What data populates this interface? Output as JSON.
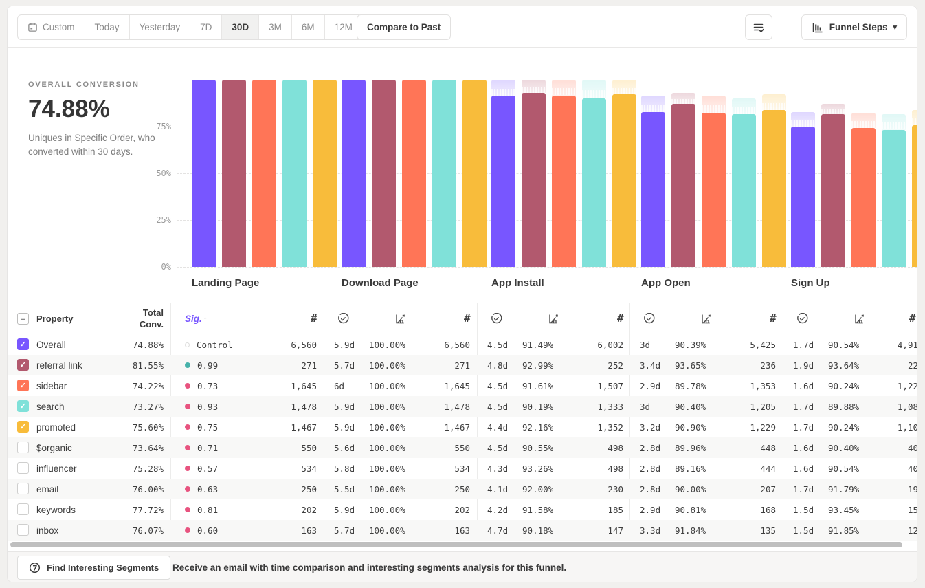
{
  "toolbar": {
    "date_ranges": [
      "Custom",
      "Today",
      "Yesterday",
      "7D",
      "30D",
      "3M",
      "6M",
      "12M"
    ],
    "selected_range": "30D",
    "compare_label": "Compare to Past",
    "view_label": "Funnel Steps"
  },
  "icons": {
    "caret": "▾",
    "arrow_up": "↑",
    "minus": "–",
    "check": "✓",
    "hash": "#"
  },
  "summary": {
    "label": "OVERALL CONVERSION",
    "value": "74.88%",
    "description": "Uniques in Specific Order, who converted within 30 days."
  },
  "chart_data": {
    "type": "bar",
    "title": "",
    "categories": [
      "Landing Page",
      "Download Page",
      "App Install",
      "App Open",
      "Sign Up"
    ],
    "yticks": [
      {
        "label": "75%",
        "value": 75
      },
      {
        "label": "50%",
        "value": 50
      },
      {
        "label": "25%",
        "value": 25
      },
      {
        "label": "0%",
        "value": 0
      }
    ],
    "ylim": [
      0,
      100
    ],
    "grid": "dashed horizontal",
    "legend_position": "none",
    "series": [
      {
        "name": "Overall",
        "color": "#7856FF",
        "cumulative_pct": [
          100,
          100,
          91.49,
          82.7,
          74.88
        ]
      },
      {
        "name": "referral link",
        "color": "#B2596E",
        "cumulative_pct": [
          100,
          100,
          92.99,
          87.08,
          81.55
        ]
      },
      {
        "name": "sidebar",
        "color": "#FF7557",
        "cumulative_pct": [
          100,
          100,
          91.61,
          82.25,
          74.22
        ]
      },
      {
        "name": "search",
        "color": "#80E1D9",
        "cumulative_pct": [
          100,
          100,
          90.19,
          81.53,
          73.27
        ]
      },
      {
        "name": "promoted",
        "color": "#F8BC3B",
        "cumulative_pct": [
          100,
          100,
          92.16,
          83.77,
          75.6
        ]
      }
    ]
  },
  "table": {
    "header": {
      "property": "Property",
      "total_line1": "Total",
      "total_line2": "Conv.",
      "sig": "Sig."
    },
    "sig_colors": {
      "control": "#dcdcdb",
      "significant": "#47B2AA",
      "not_significant": "#E8537F"
    },
    "rows": [
      {
        "label": "Overall",
        "checked": true,
        "color": "#7856FF",
        "total": "74.88%",
        "sig": "Control",
        "sig_kind": "control",
        "steps": [
          {
            "count": "6,560"
          },
          {
            "time": "5.9d",
            "rate": "100.00%",
            "count": "6,560"
          },
          {
            "time": "4.5d",
            "rate": "91.49%",
            "count": "6,002"
          },
          {
            "time": "3d",
            "rate": "90.39%",
            "count": "5,425"
          },
          {
            "time": "1.7d",
            "rate": "90.54%",
            "count": "4,91"
          }
        ]
      },
      {
        "label": "referral link",
        "checked": true,
        "color": "#B2596E",
        "total": "81.55%",
        "sig": "0.99",
        "sig_kind": "significant",
        "steps": [
          {
            "count": "271"
          },
          {
            "time": "5.7d",
            "rate": "100.00%",
            "count": "271"
          },
          {
            "time": "4.8d",
            "rate": "92.99%",
            "count": "252"
          },
          {
            "time": "3.4d",
            "rate": "93.65%",
            "count": "236"
          },
          {
            "time": "1.9d",
            "rate": "93.64%",
            "count": "22"
          }
        ]
      },
      {
        "label": "sidebar",
        "checked": true,
        "color": "#FF7557",
        "total": "74.22%",
        "sig": "0.73",
        "sig_kind": "not_significant",
        "steps": [
          {
            "count": "1,645"
          },
          {
            "time": "6d",
            "rate": "100.00%",
            "count": "1,645"
          },
          {
            "time": "4.5d",
            "rate": "91.61%",
            "count": "1,507"
          },
          {
            "time": "2.9d",
            "rate": "89.78%",
            "count": "1,353"
          },
          {
            "time": "1.6d",
            "rate": "90.24%",
            "count": "1,22"
          }
        ]
      },
      {
        "label": "search",
        "checked": true,
        "color": "#80E1D9",
        "total": "73.27%",
        "sig": "0.93",
        "sig_kind": "not_significant",
        "steps": [
          {
            "count": "1,478"
          },
          {
            "time": "5.9d",
            "rate": "100.00%",
            "count": "1,478"
          },
          {
            "time": "4.5d",
            "rate": "90.19%",
            "count": "1,333"
          },
          {
            "time": "3d",
            "rate": "90.40%",
            "count": "1,205"
          },
          {
            "time": "1.7d",
            "rate": "89.88%",
            "count": "1,08"
          }
        ]
      },
      {
        "label": "promoted",
        "checked": true,
        "color": "#F8BC3B",
        "total": "75.60%",
        "sig": "0.75",
        "sig_kind": "not_significant",
        "steps": [
          {
            "count": "1,467"
          },
          {
            "time": "5.9d",
            "rate": "100.00%",
            "count": "1,467"
          },
          {
            "time": "4.4d",
            "rate": "92.16%",
            "count": "1,352"
          },
          {
            "time": "3.2d",
            "rate": "90.90%",
            "count": "1,229"
          },
          {
            "time": "1.7d",
            "rate": "90.24%",
            "count": "1,10"
          }
        ]
      },
      {
        "label": "$organic",
        "checked": false,
        "color": null,
        "total": "73.64%",
        "sig": "0.71",
        "sig_kind": "not_significant",
        "steps": [
          {
            "count": "550"
          },
          {
            "time": "5.6d",
            "rate": "100.00%",
            "count": "550"
          },
          {
            "time": "4.5d",
            "rate": "90.55%",
            "count": "498"
          },
          {
            "time": "2.8d",
            "rate": "89.96%",
            "count": "448"
          },
          {
            "time": "1.6d",
            "rate": "90.40%",
            "count": "40"
          }
        ]
      },
      {
        "label": "influencer",
        "checked": false,
        "color": null,
        "total": "75.28%",
        "sig": "0.57",
        "sig_kind": "not_significant",
        "steps": [
          {
            "count": "534"
          },
          {
            "time": "5.8d",
            "rate": "100.00%",
            "count": "534"
          },
          {
            "time": "4.3d",
            "rate": "93.26%",
            "count": "498"
          },
          {
            "time": "2.8d",
            "rate": "89.16%",
            "count": "444"
          },
          {
            "time": "1.6d",
            "rate": "90.54%",
            "count": "40"
          }
        ]
      },
      {
        "label": "email",
        "checked": false,
        "color": null,
        "total": "76.00%",
        "sig": "0.63",
        "sig_kind": "not_significant",
        "steps": [
          {
            "count": "250"
          },
          {
            "time": "5.5d",
            "rate": "100.00%",
            "count": "250"
          },
          {
            "time": "4.1d",
            "rate": "92.00%",
            "count": "230"
          },
          {
            "time": "2.8d",
            "rate": "90.00%",
            "count": "207"
          },
          {
            "time": "1.7d",
            "rate": "91.79%",
            "count": "19"
          }
        ]
      },
      {
        "label": "keywords",
        "checked": false,
        "color": null,
        "total": "77.72%",
        "sig": "0.81",
        "sig_kind": "not_significant",
        "steps": [
          {
            "count": "202"
          },
          {
            "time": "5.9d",
            "rate": "100.00%",
            "count": "202"
          },
          {
            "time": "4.2d",
            "rate": "91.58%",
            "count": "185"
          },
          {
            "time": "2.9d",
            "rate": "90.81%",
            "count": "168"
          },
          {
            "time": "1.5d",
            "rate": "93.45%",
            "count": "15"
          }
        ]
      },
      {
        "label": "inbox",
        "checked": false,
        "color": null,
        "total": "76.07%",
        "sig": "0.60",
        "sig_kind": "not_significant",
        "steps": [
          {
            "count": "163"
          },
          {
            "time": "5.7d",
            "rate": "100.00%",
            "count": "163"
          },
          {
            "time": "4.7d",
            "rate": "90.18%",
            "count": "147"
          },
          {
            "time": "3.3d",
            "rate": "91.84%",
            "count": "135"
          },
          {
            "time": "1.5d",
            "rate": "91.85%",
            "count": "12"
          }
        ]
      }
    ]
  },
  "footer": {
    "button_label": "Find Interesting Segments",
    "message": "Receive an email with time comparison and interesting segments analysis for this funnel."
  }
}
